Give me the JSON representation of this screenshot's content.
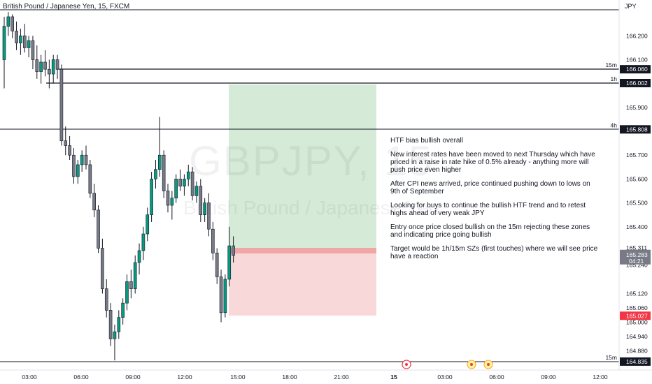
{
  "header": {
    "title": "British Pound / Japanese Yen, 15, FXCM",
    "currency": "JPY"
  },
  "watermark": {
    "symbol": "GBPJPY, 15",
    "name": "British Pound / Japanese Yen"
  },
  "notes": [
    "HTF bias bullish overall",
    "New interest rates have been moved to next Thursday which have priced in a raise in rate hike of 0.5% already - anything more will push price even higher",
    "After CPI news arrived, price continued pushing down to lows on 9th of September",
    "Looking for buys to continue the bullish HTF trend and to retest highs ahead of very weak JPY",
    "Entry once price closed bullish on the 15m rejecting these zones and indicating price going bullish",
    "Target would be 1h/15m SZs (first touches) where we will see price have a reaction"
  ],
  "price_axis": {
    "ticks": [
      "166.200",
      "166.100",
      "165.900",
      "165.700",
      "165.600",
      "165.500",
      "165.400",
      "165.311",
      "165.240",
      "165.120",
      "165.060",
      "165.000",
      "164.940",
      "164.880"
    ],
    "current_price": "165.283",
    "countdown": "04:21"
  },
  "time_axis": [
    "03:00",
    "06:00",
    "09:00",
    "12:00",
    "15:00",
    "18:00",
    "21:00",
    "15",
    "03:00",
    "06:00",
    "09:00",
    "12:00"
  ],
  "levels": [
    {
      "label": "15m",
      "price": "166.060",
      "bg": "#131722"
    },
    {
      "label": "",
      "price": "166.002",
      "bg": "#089981"
    },
    {
      "label": "1h",
      "price": "166.002",
      "bg": "#131722"
    },
    {
      "label": "4h",
      "price": "165.808",
      "bg": "#131722"
    },
    {
      "label": "",
      "price": "165.027",
      "bg": "#f23645"
    },
    {
      "label": "15m",
      "price": "164.835",
      "bg": "#131722"
    }
  ],
  "trade": {
    "entry": 165.32,
    "target": 165.98,
    "stop": 165.03
  },
  "colors": {
    "bull": "#089981",
    "bear": "#787b86",
    "profit_zone": "#d6ead8",
    "loss_zone": "#f8d8d9"
  },
  "chart_data": {
    "type": "candlestick",
    "ohlc": [
      [
        166.1,
        166.28,
        165.98,
        166.24
      ],
      [
        166.24,
        166.3,
        166.2,
        166.28
      ],
      [
        166.28,
        166.29,
        166.19,
        166.22
      ],
      [
        166.22,
        166.26,
        166.14,
        166.17
      ],
      [
        166.17,
        166.23,
        166.12,
        166.2
      ],
      [
        166.2,
        166.25,
        166.13,
        166.15
      ],
      [
        166.15,
        166.2,
        166.11,
        166.18
      ],
      [
        166.18,
        166.2,
        166.06,
        166.1
      ],
      [
        166.1,
        166.16,
        166.02,
        166.05
      ],
      [
        166.05,
        166.12,
        166.0,
        166.09
      ],
      [
        166.09,
        166.14,
        166.03,
        166.06
      ],
      [
        166.06,
        166.1,
        165.98,
        166.04
      ],
      [
        166.04,
        166.12,
        166.0,
        166.1
      ],
      [
        166.1,
        166.12,
        166.02,
        166.06
      ],
      [
        166.06,
        166.08,
        165.74,
        165.76
      ],
      [
        165.76,
        165.82,
        165.7,
        165.74
      ],
      [
        165.74,
        165.78,
        165.68,
        165.7
      ],
      [
        165.7,
        165.73,
        165.58,
        165.61
      ],
      [
        165.61,
        165.68,
        165.58,
        165.66
      ],
      [
        165.66,
        165.72,
        165.63,
        165.7
      ],
      [
        165.7,
        165.74,
        165.64,
        165.66
      ],
      [
        165.66,
        165.68,
        165.52,
        165.54
      ],
      [
        165.54,
        165.58,
        165.44,
        165.47
      ],
      [
        165.47,
        165.49,
        165.29,
        165.31
      ],
      [
        165.31,
        165.35,
        165.12,
        165.14
      ],
      [
        165.14,
        165.18,
        165.02,
        165.05
      ],
      [
        165.05,
        165.08,
        164.9,
        164.93
      ],
      [
        164.93,
        164.99,
        164.84,
        164.96
      ],
      [
        164.96,
        165.05,
        164.93,
        165.02
      ],
      [
        165.02,
        165.1,
        164.99,
        165.08
      ],
      [
        165.08,
        165.2,
        165.05,
        165.17
      ],
      [
        165.17,
        165.22,
        165.1,
        165.14
      ],
      [
        165.14,
        165.28,
        165.12,
        165.25
      ],
      [
        165.25,
        165.33,
        165.2,
        165.3
      ],
      [
        165.3,
        165.4,
        165.26,
        165.37
      ],
      [
        165.37,
        165.48,
        165.34,
        165.45
      ],
      [
        165.45,
        165.63,
        165.42,
        165.6
      ],
      [
        165.6,
        165.68,
        165.56,
        165.64
      ],
      [
        165.64,
        165.86,
        165.61,
        165.7
      ],
      [
        165.7,
        165.72,
        165.52,
        165.55
      ],
      [
        165.55,
        165.58,
        165.46,
        165.49
      ],
      [
        165.49,
        165.55,
        165.43,
        165.52
      ],
      [
        165.52,
        165.62,
        165.5,
        165.6
      ],
      [
        165.6,
        165.64,
        165.55,
        165.57
      ],
      [
        165.57,
        165.62,
        165.53,
        165.6
      ],
      [
        165.6,
        165.66,
        165.57,
        165.63
      ],
      [
        165.63,
        165.65,
        165.51,
        165.53
      ],
      [
        165.53,
        165.59,
        165.5,
        165.57
      ],
      [
        165.57,
        165.6,
        165.42,
        165.45
      ],
      [
        165.45,
        165.52,
        165.42,
        165.5
      ],
      [
        165.5,
        165.54,
        165.36,
        165.39
      ],
      [
        165.39,
        165.42,
        165.26,
        165.29
      ],
      [
        165.29,
        165.31,
        165.16,
        165.19
      ],
      [
        165.19,
        165.22,
        165.0,
        165.04
      ],
      [
        165.04,
        165.2,
        165.02,
        165.18
      ],
      [
        165.18,
        165.4,
        165.15,
        165.32
      ],
      [
        165.32,
        165.36,
        165.25,
        165.28
      ]
    ]
  }
}
